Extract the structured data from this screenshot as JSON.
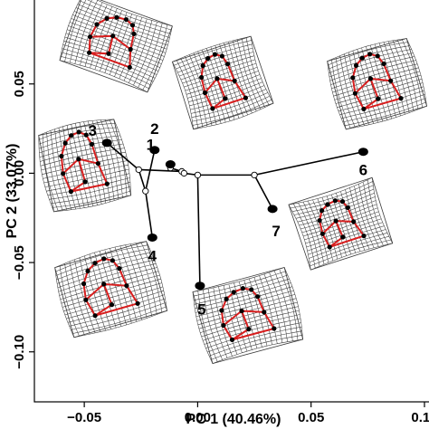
{
  "chart_data": {
    "type": "scatter",
    "subtype": "PCA morphospace with phylogeny and deformation grids",
    "xlabel": "PC 1 (40.46%)",
    "ylabel": "PC 2 (33.07%)",
    "xlim": [
      -0.072,
      0.102
    ],
    "ylim": [
      -0.128,
      0.097
    ],
    "grid": false,
    "x_ticks": [
      -0.05,
      0.0,
      0.05,
      0.1
    ],
    "x_tick_labels": [
      "−0.05",
      "0.00",
      "0.05",
      "0.10"
    ],
    "y_ticks": [
      -0.1,
      -0.05,
      0.0,
      0.05
    ],
    "y_tick_labels": [
      "−0.10",
      "−0.05",
      "0.00",
      "0.05"
    ],
    "tips": [
      {
        "label": "1",
        "x": -0.012,
        "y": 0.005
      },
      {
        "label": "2",
        "x": -0.019,
        "y": 0.013
      },
      {
        "label": "3",
        "x": -0.04,
        "y": 0.017
      },
      {
        "label": "4",
        "x": -0.02,
        "y": -0.036
      },
      {
        "label": "5",
        "x": 0.001,
        "y": -0.063
      },
      {
        "label": "6",
        "x": 0.073,
        "y": 0.012
      },
      {
        "label": "7",
        "x": 0.033,
        "y": -0.02
      }
    ],
    "internal_nodes": [
      {
        "id": "a",
        "x": -0.026,
        "y": 0.002
      },
      {
        "id": "b",
        "x": -0.023,
        "y": -0.01
      },
      {
        "id": "c",
        "x": -0.007,
        "y": 0.001
      },
      {
        "id": "d",
        "x": -0.012,
        "y": 0.003
      },
      {
        "id": "e",
        "x": -0.006,
        "y": 0.0
      },
      {
        "id": "f",
        "x": 0.0,
        "y": -0.001
      },
      {
        "id": "g",
        "x": 0.025,
        "y": -0.001
      }
    ],
    "branches": [
      [
        "a",
        "3"
      ],
      [
        "a",
        "b"
      ],
      [
        "b",
        "2"
      ],
      [
        "b",
        "4"
      ],
      [
        "a",
        "c"
      ],
      [
        "c",
        "d"
      ],
      [
        "d",
        "1"
      ],
      [
        "c",
        "e"
      ],
      [
        "e",
        "f"
      ],
      [
        "f",
        "5"
      ],
      [
        "f",
        "g"
      ],
      [
        "g",
        "6"
      ],
      [
        "g",
        "7"
      ]
    ]
  },
  "colors": {
    "outline": "#d81e1e",
    "landmark": "#000000",
    "grid": "#3a3a3a",
    "branch": "#000000"
  },
  "deformation_grids_count": 7
}
